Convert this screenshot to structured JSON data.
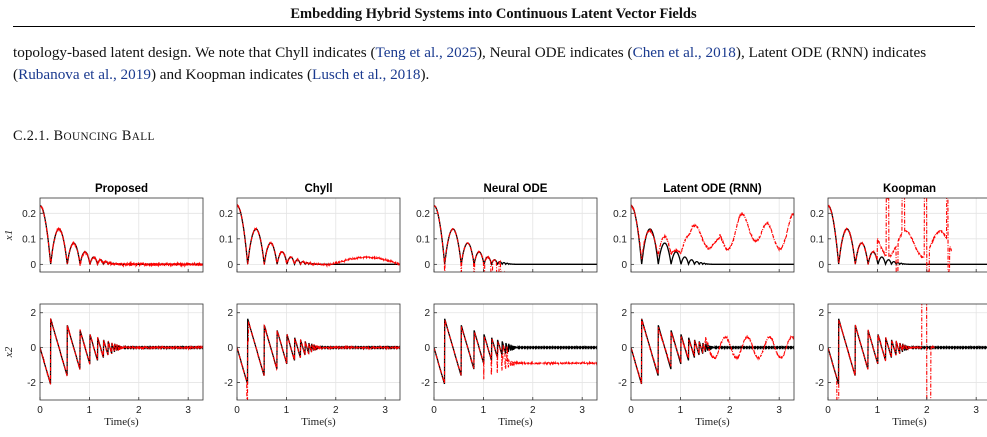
{
  "header": {
    "title": "Embedding Hybrid Systems into Continuous Latent Vector Fields"
  },
  "paragraph": {
    "t1": "topology-based latent design. We note that Chyll indicates (",
    "c1": "Teng et al., 2025",
    "t2": "), Neural ODE indicates (",
    "c2": "Chen et al., 2018",
    "t3": "), Latent ODE (RNN) indicates (",
    "c3": "Rubanova et al., 2019",
    "t4": ") and Koopman indicates (",
    "c4": "Lusch et al., 2018",
    "t5": ")."
  },
  "section": {
    "number": "C.2.1.",
    "title_first": "B",
    "title_first_rest": "OUNCING",
    "title_second": "B",
    "title_second_rest": "ALL"
  },
  "colors": {
    "ground_truth": "#000000",
    "prediction": "#ff0000",
    "grid": "#e4e4e4",
    "axis": "#333333"
  },
  "chart_data": [
    {
      "type": "line",
      "title": "Proposed",
      "x_label": "",
      "y_label": "x1",
      "xlim": [
        0,
        3.3
      ],
      "ylim": [
        -0.03,
        0.26
      ],
      "y_ticks": [
        0,
        0.1,
        0.2
      ],
      "x_ticks": [
        0,
        1,
        2,
        3
      ],
      "series": [
        {
          "style": "ground_truth"
        },
        {
          "style": "prediction",
          "damp": 0.42,
          "noise": 0.008,
          "mode": "good"
        }
      ]
    },
    {
      "type": "line",
      "title": "Chyll",
      "x_label": "",
      "y_label": "",
      "xlim": [
        0,
        3.3
      ],
      "ylim": [
        -0.03,
        0.26
      ],
      "y_ticks": [
        0,
        0.1,
        0.2
      ],
      "x_ticks": [
        0,
        1,
        2,
        3
      ],
      "series": [
        {
          "style": "ground_truth"
        },
        {
          "style": "prediction",
          "mode": "good_late_drift"
        }
      ]
    },
    {
      "type": "line",
      "title": "Neural ODE",
      "x_label": "",
      "y_label": "",
      "xlim": [
        0,
        3.3
      ],
      "ylim": [
        -0.03,
        0.26
      ],
      "y_ticks": [
        0,
        0.1,
        0.2
      ],
      "x_ticks": [
        0,
        1,
        2,
        3
      ],
      "series": [
        {
          "style": "ground_truth"
        },
        {
          "style": "prediction",
          "mode": "undershoot"
        }
      ]
    },
    {
      "type": "line",
      "title": "Latent ODE (RNN)",
      "x_label": "",
      "y_label": "",
      "xlim": [
        0,
        3.3
      ],
      "ylim": [
        -0.03,
        0.26
      ],
      "y_ticks": [
        0,
        0.1,
        0.2
      ],
      "x_ticks": [
        0,
        1,
        2,
        3
      ],
      "series": [
        {
          "style": "ground_truth"
        },
        {
          "style": "prediction",
          "mode": "drift_up"
        }
      ]
    },
    {
      "type": "line",
      "title": "Koopman",
      "x_label": "",
      "y_label": "",
      "xlim": [
        0,
        3.3
      ],
      "ylim": [
        -0.03,
        0.26
      ],
      "y_ticks": [
        0,
        0.1,
        0.2
      ],
      "x_ticks": [
        0,
        1,
        2,
        3
      ],
      "series": [
        {
          "style": "ground_truth"
        },
        {
          "style": "prediction",
          "mode": "diverge"
        }
      ]
    },
    {
      "type": "line",
      "title": "",
      "x_label": "Time(s)",
      "y_label": "x2",
      "xlim": [
        0,
        3.3
      ],
      "ylim": [
        -3,
        2.5
      ],
      "y_ticks": [
        -2,
        0,
        2
      ],
      "x_ticks": [
        0,
        1,
        2,
        3
      ],
      "series": [
        {
          "style": "ground_truth"
        },
        {
          "style": "prediction",
          "mode": "good"
        }
      ]
    },
    {
      "type": "line",
      "title": "",
      "x_label": "Time(s)",
      "y_label": "",
      "xlim": [
        0,
        3.3
      ],
      "ylim": [
        -3,
        2.5
      ],
      "y_ticks": [
        -2,
        0,
        2
      ],
      "x_ticks": [
        0,
        1,
        2,
        3
      ],
      "series": [
        {
          "style": "ground_truth"
        },
        {
          "style": "prediction",
          "mode": "good_late_drift"
        }
      ]
    },
    {
      "type": "line",
      "title": "",
      "x_label": "Time(s)",
      "y_label": "",
      "xlim": [
        0,
        3.3
      ],
      "ylim": [
        -3,
        2.5
      ],
      "y_ticks": [
        -2,
        0,
        2
      ],
      "x_ticks": [
        0,
        1,
        2,
        3
      ],
      "series": [
        {
          "style": "ground_truth"
        },
        {
          "style": "prediction",
          "mode": "undershoot"
        }
      ]
    },
    {
      "type": "line",
      "title": "",
      "x_label": "Time(s)",
      "y_label": "",
      "xlim": [
        0,
        3.3
      ],
      "ylim": [
        -3,
        2.5
      ],
      "y_ticks": [
        -2,
        0,
        2
      ],
      "x_ticks": [
        0,
        1,
        2,
        3
      ],
      "series": [
        {
          "style": "ground_truth"
        },
        {
          "style": "prediction",
          "mode": "drift_up"
        }
      ]
    },
    {
      "type": "line",
      "title": "",
      "x_label": "Time(s)",
      "y_label": "",
      "xlim": [
        0,
        3.3
      ],
      "ylim": [
        -3,
        2.5
      ],
      "y_ticks": [
        -2,
        0,
        2
      ],
      "x_ticks": [
        0,
        1,
        2,
        3
      ],
      "series": [
        {
          "style": "ground_truth"
        },
        {
          "style": "prediction",
          "mode": "diverge"
        }
      ]
    }
  ]
}
